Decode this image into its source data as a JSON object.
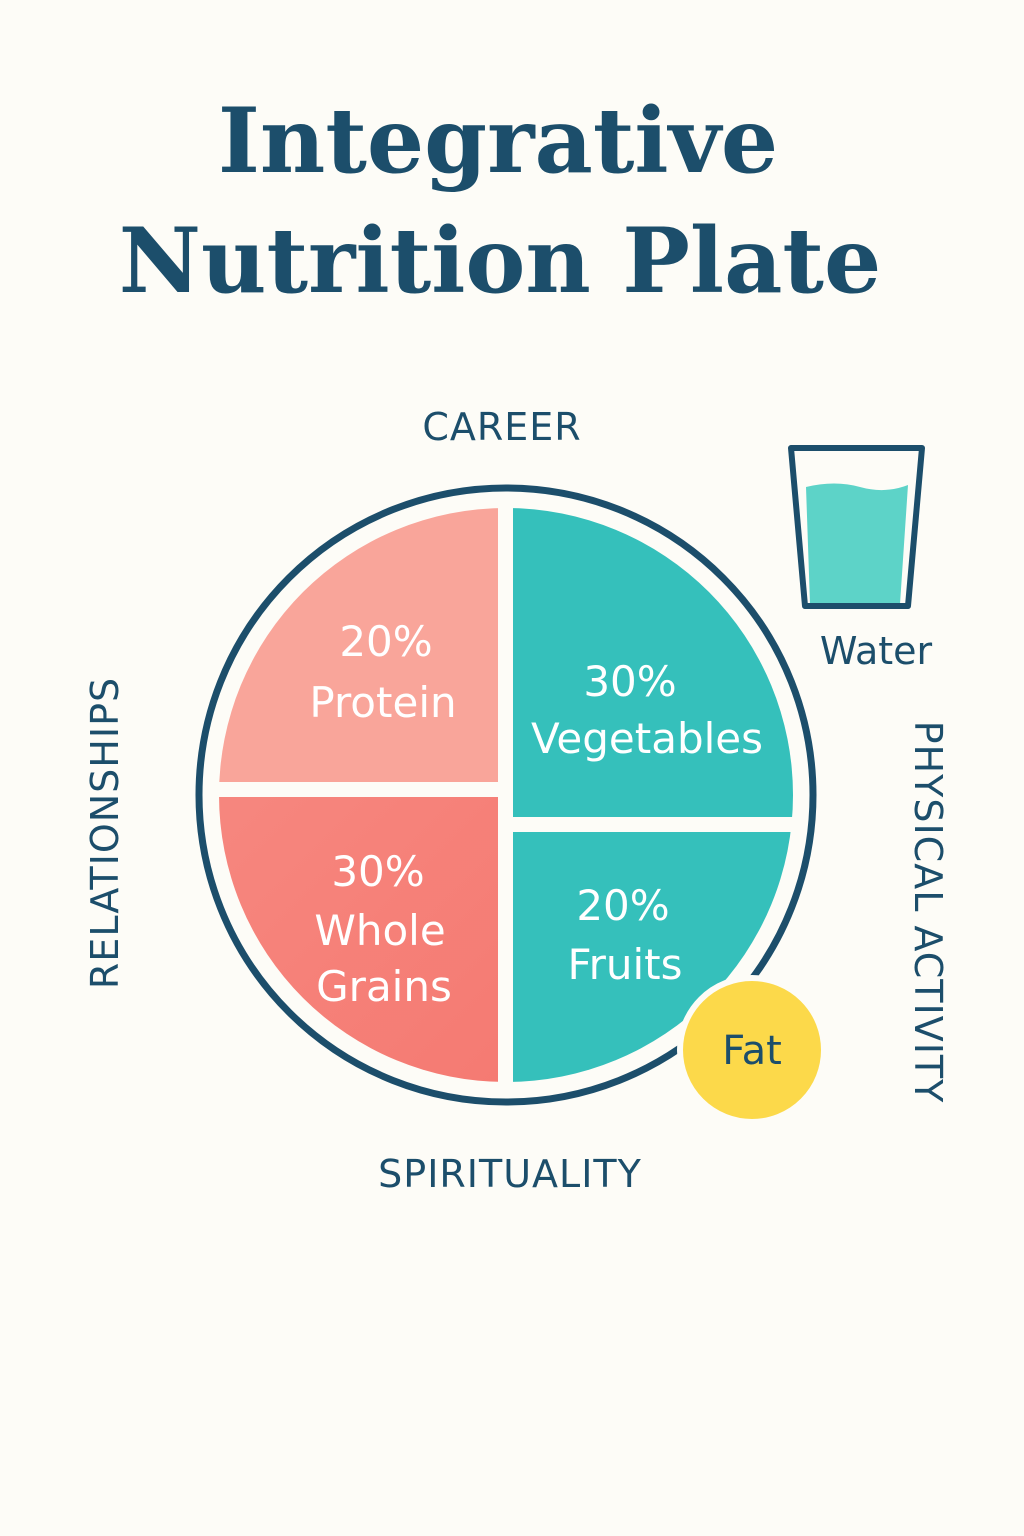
{
  "title": [
    "Integrative",
    "Nutrition Plate"
  ],
  "plate": {
    "sections": [
      {
        "percent": "20%",
        "name": [
          "Protein"
        ]
      },
      {
        "percent": "30%",
        "name": [
          "Vegetables"
        ]
      },
      {
        "percent": "30%",
        "name": [
          "Whole",
          "Grains"
        ]
      },
      {
        "percent": "20%",
        "name": [
          "Fruits"
        ]
      }
    ]
  },
  "labels": {
    "top": "CAREER",
    "left": "RELATIONSHIPS",
    "bottom": "SPIRITUALITY",
    "right": "PHYSICAL ACTIVITY"
  },
  "water": "Water",
  "fat": "Fat"
}
